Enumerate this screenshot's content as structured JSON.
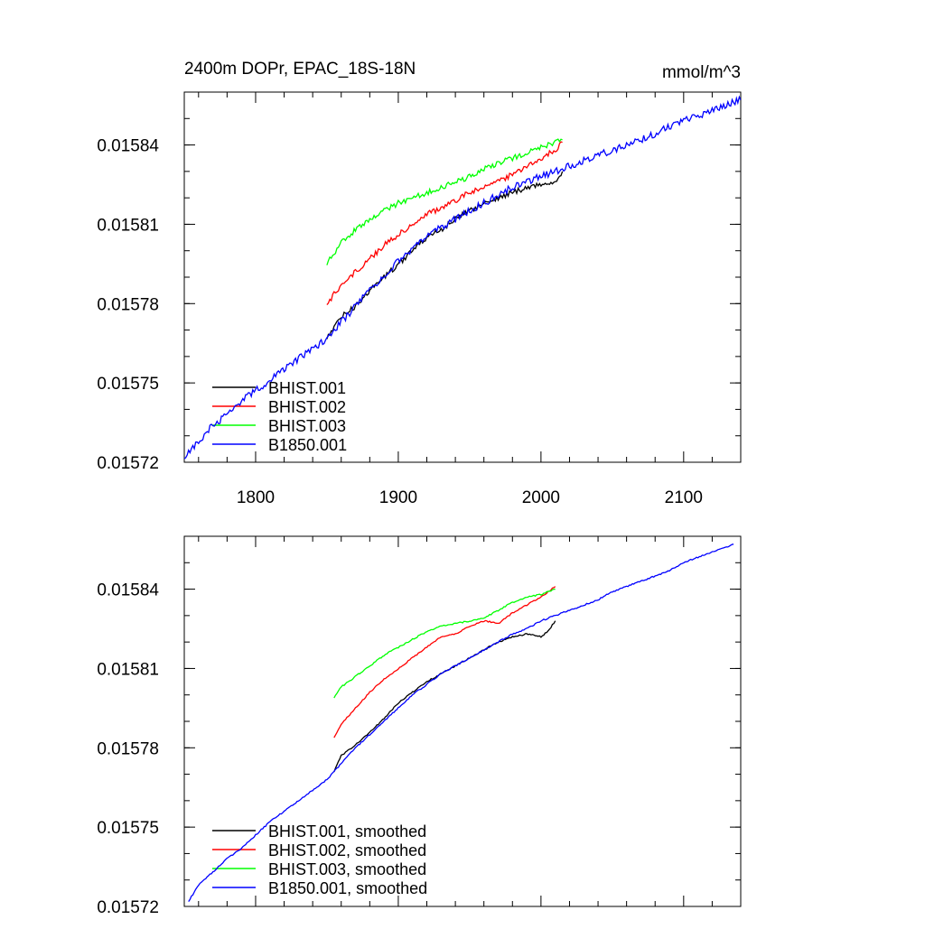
{
  "chart_data": [
    {
      "type": "line",
      "title": "2400m DOPr, EPAC_18S-18N",
      "units": "mmol/m^3",
      "xlim": [
        1750,
        2140
      ],
      "ylim": [
        0.01572,
        0.01586
      ],
      "xticks": [
        1800,
        1900,
        2000,
        2100
      ],
      "xtick_labels": [
        "1800",
        "1900",
        "2000",
        "2100"
      ],
      "yticks": [
        0.01572,
        0.01575,
        0.01578,
        0.01581,
        0.01584
      ],
      "ytick_labels": [
        "0.01572",
        "0.01575",
        "0.01578",
        "0.01581",
        "0.01584"
      ],
      "legend_position": "bottom-left",
      "series": [
        {
          "name": "BHIST.001",
          "color": "#000000",
          "noise": 3,
          "x": [
            1850,
            1860,
            1870,
            1880,
            1890,
            1900,
            1910,
            1920,
            1930,
            1940,
            1950,
            1960,
            1970,
            1980,
            1990,
            2000,
            2010,
            2015
          ],
          "y": [
            0.015767,
            0.015775,
            0.015779,
            0.015785,
            0.01579,
            0.015795,
            0.0158,
            0.015805,
            0.015808,
            0.015812,
            0.015815,
            0.015818,
            0.01582,
            0.015822,
            0.015824,
            0.015825,
            0.015826,
            0.01583
          ]
        },
        {
          "name": "BHIST.002",
          "color": "#ff0000",
          "noise": 3,
          "x": [
            1850,
            1860,
            1870,
            1880,
            1890,
            1900,
            1910,
            1920,
            1930,
            1940,
            1950,
            1960,
            1970,
            1980,
            1990,
            2000,
            2010,
            2015
          ],
          "y": [
            0.01578,
            0.015787,
            0.015792,
            0.015797,
            0.015802,
            0.015806,
            0.01581,
            0.015814,
            0.015816,
            0.015819,
            0.015822,
            0.015824,
            0.015826,
            0.015829,
            0.015832,
            0.015835,
            0.015838,
            0.015841
          ]
        },
        {
          "name": "BHIST.003",
          "color": "#00ff00",
          "noise": 3,
          "x": [
            1850,
            1860,
            1870,
            1880,
            1890,
            1900,
            1910,
            1920,
            1930,
            1940,
            1950,
            1960,
            1970,
            1980,
            1990,
            2000,
            2010,
            2015
          ],
          "y": [
            0.015795,
            0.015803,
            0.015808,
            0.015812,
            0.015815,
            0.015818,
            0.01582,
            0.015822,
            0.015824,
            0.015826,
            0.015828,
            0.015831,
            0.015833,
            0.015835,
            0.015837,
            0.015839,
            0.015841,
            0.015842
          ]
        },
        {
          "name": "B1850.001",
          "color": "#0000ff",
          "noise": 4,
          "x": [
            1750,
            1760,
            1770,
            1780,
            1790,
            1800,
            1810,
            1820,
            1830,
            1840,
            1850,
            1860,
            1870,
            1880,
            1890,
            1900,
            1910,
            1920,
            1930,
            1940,
            1950,
            1960,
            1970,
            1980,
            1990,
            2000,
            2010,
            2020,
            2030,
            2040,
            2050,
            2060,
            2070,
            2080,
            2090,
            2100,
            2110,
            2120,
            2130,
            2140
          ],
          "y": [
            0.015722,
            0.015728,
            0.015734,
            0.015738,
            0.015743,
            0.015747,
            0.015751,
            0.015755,
            0.015759,
            0.015763,
            0.015767,
            0.015773,
            0.015779,
            0.015785,
            0.015791,
            0.015796,
            0.015801,
            0.015805,
            0.015809,
            0.015812,
            0.015815,
            0.015818,
            0.015821,
            0.015824,
            0.015826,
            0.015828,
            0.01583,
            0.015832,
            0.015834,
            0.015836,
            0.015838,
            0.01584,
            0.015842,
            0.015844,
            0.015847,
            0.015849,
            0.015851,
            0.015853,
            0.015855,
            0.015857
          ]
        }
      ]
    },
    {
      "type": "line",
      "xlim": [
        1750,
        2140
      ],
      "ylim": [
        0.01572,
        0.01586
      ],
      "yticks": [
        0.01572,
        0.01575,
        0.01578,
        0.01581,
        0.01584
      ],
      "ytick_labels": [
        "0.01572",
        "0.01575",
        "0.01578",
        "0.01581",
        "0.01584"
      ],
      "xticks": [
        1800,
        1900,
        2000,
        2100
      ],
      "legend_position": "bottom-left",
      "series": [
        {
          "name": "BHIST.001, smoothed",
          "color": "#000000",
          "noise": 0.8,
          "x": [
            1855,
            1860,
            1870,
            1880,
            1890,
            1900,
            1910,
            1920,
            1930,
            1940,
            1950,
            1960,
            1970,
            1980,
            1990,
            2000,
            2005,
            2010
          ],
          "y": [
            0.015771,
            0.015777,
            0.015781,
            0.015786,
            0.015791,
            0.015797,
            0.015801,
            0.015805,
            0.015808,
            0.015811,
            0.015814,
            0.015817,
            0.01582,
            0.015822,
            0.015823,
            0.015822,
            0.015824,
            0.015828
          ]
        },
        {
          "name": "BHIST.002, smoothed",
          "color": "#ff0000",
          "noise": 0.8,
          "x": [
            1855,
            1860,
            1870,
            1880,
            1890,
            1900,
            1910,
            1920,
            1930,
            1940,
            1950,
            1960,
            1970,
            1980,
            1990,
            2000,
            2010
          ],
          "y": [
            0.015784,
            0.015789,
            0.015795,
            0.015801,
            0.015806,
            0.01581,
            0.015814,
            0.015818,
            0.015822,
            0.015823,
            0.015826,
            0.015828,
            0.015827,
            0.015831,
            0.015834,
            0.015837,
            0.015841
          ]
        },
        {
          "name": "BHIST.003, smoothed",
          "color": "#00ff00",
          "noise": 0.8,
          "x": [
            1855,
            1860,
            1870,
            1880,
            1890,
            1900,
            1910,
            1920,
            1930,
            1940,
            1950,
            1960,
            1970,
            1980,
            1990,
            2000,
            2010
          ],
          "y": [
            0.015799,
            0.015803,
            0.015807,
            0.015811,
            0.015815,
            0.015818,
            0.015821,
            0.015824,
            0.015826,
            0.015827,
            0.015828,
            0.015829,
            0.015832,
            0.015835,
            0.015837,
            0.015838,
            0.01584
          ]
        },
        {
          "name": "B1850.001, smoothed",
          "color": "#0000ff",
          "noise": 0.8,
          "x": [
            1753,
            1760,
            1770,
            1780,
            1790,
            1800,
            1810,
            1820,
            1830,
            1840,
            1850,
            1860,
            1870,
            1880,
            1890,
            1900,
            1910,
            1920,
            1930,
            1940,
            1950,
            1960,
            1970,
            1980,
            1990,
            2000,
            2010,
            2020,
            2030,
            2040,
            2050,
            2060,
            2070,
            2080,
            2090,
            2100,
            2110,
            2120,
            2130,
            2135
          ],
          "y": [
            0.015722,
            0.015728,
            0.015733,
            0.015738,
            0.015742,
            0.015747,
            0.015752,
            0.015756,
            0.01576,
            0.015764,
            0.015768,
            0.015774,
            0.01578,
            0.015785,
            0.01579,
            0.015795,
            0.0158,
            0.015804,
            0.015808,
            0.015811,
            0.015814,
            0.015817,
            0.01582,
            0.015823,
            0.015825,
            0.015828,
            0.01583,
            0.015832,
            0.015834,
            0.015836,
            0.015839,
            0.015841,
            0.015843,
            0.015845,
            0.015847,
            0.01585,
            0.015852,
            0.015854,
            0.015856,
            0.015857
          ]
        }
      ]
    }
  ]
}
